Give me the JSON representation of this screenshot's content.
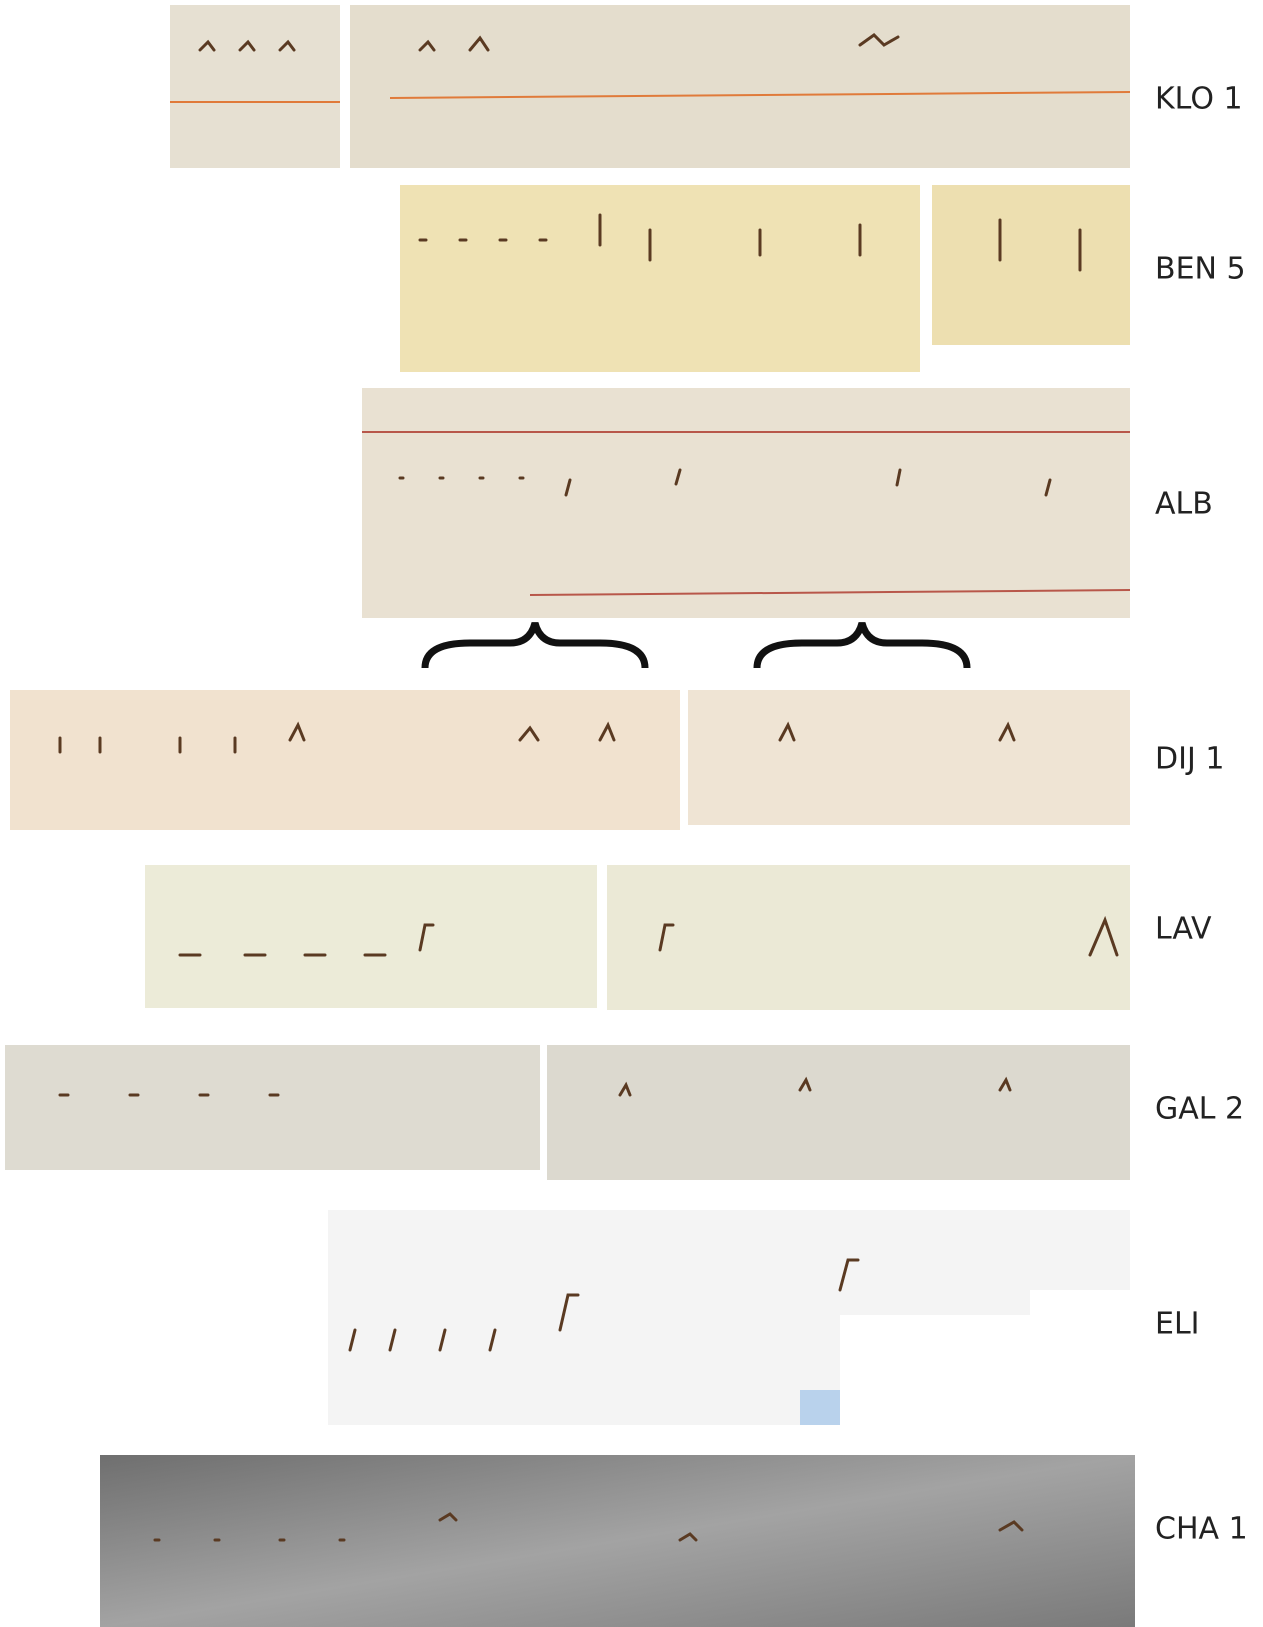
{
  "rows": [
    {
      "label": "KLO 1"
    },
    {
      "label": "BEN 5"
    },
    {
      "label": "ALB"
    },
    {
      "label": "DIJ 1"
    },
    {
      "label": "LAV"
    },
    {
      "label": "GAL 2"
    },
    {
      "label": "ELI"
    },
    {
      "label": "CHA 1"
    }
  ]
}
